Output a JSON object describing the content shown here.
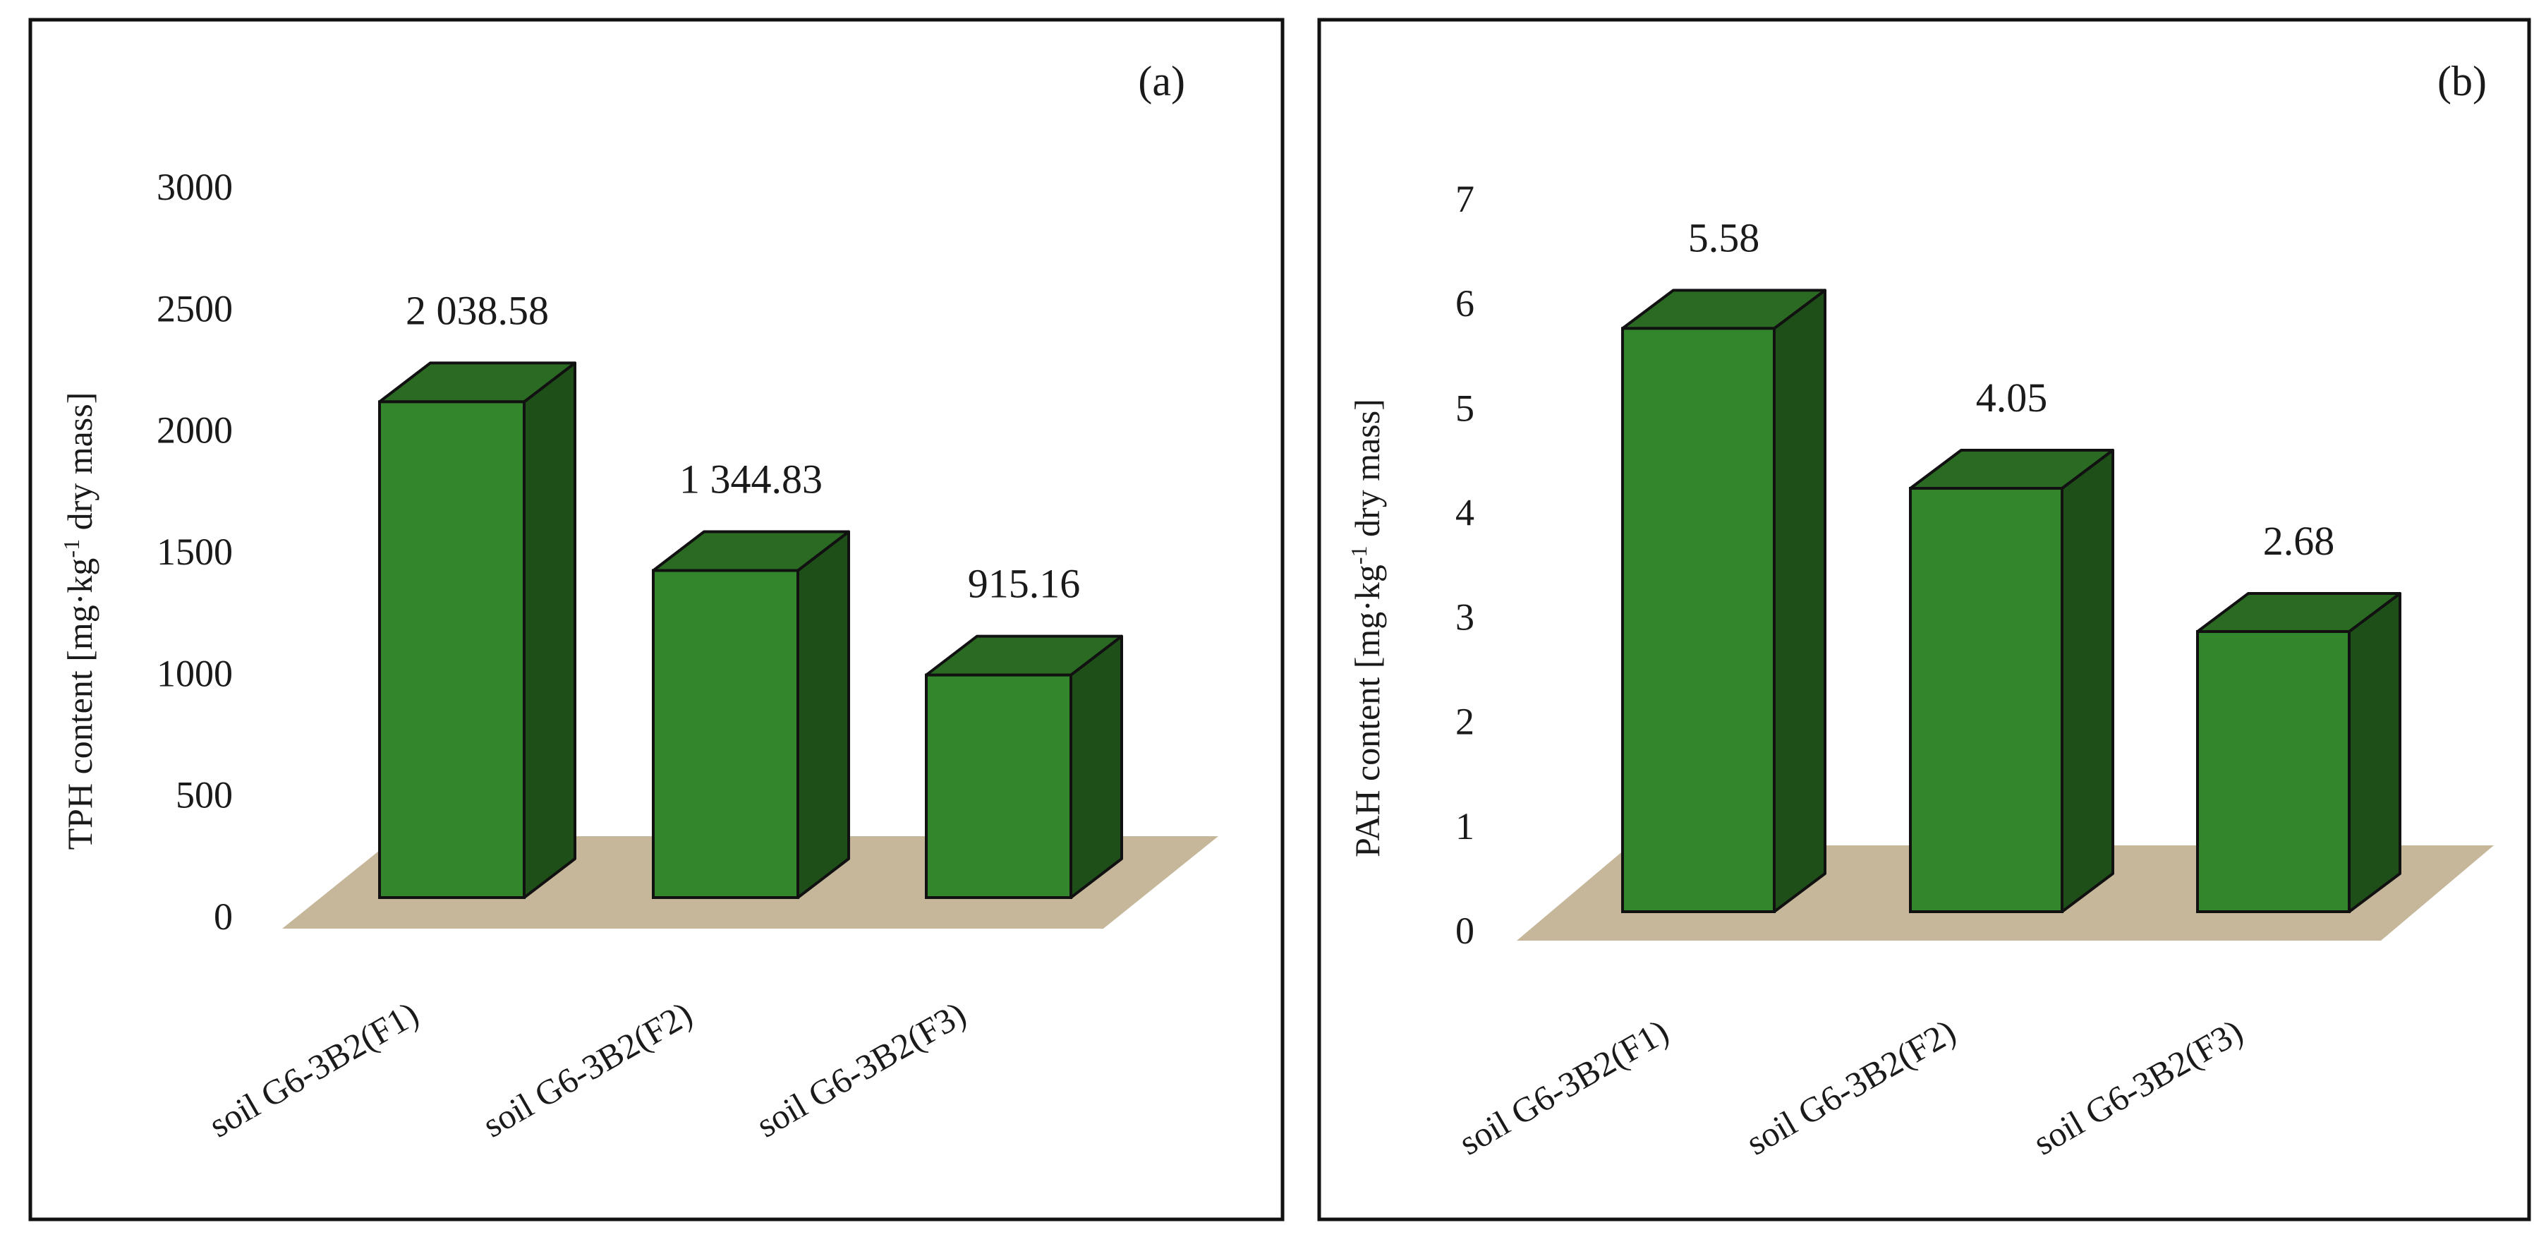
{
  "chart_data": [
    {
      "type": "bar",
      "panel_label": "(a)",
      "ylabel_main": "TPH content [mg·kg",
      "ylabel_sup": "-1",
      "ylabel_tail": " dry mass]",
      "categories": [
        "soil G6-3B2(F1)",
        "soil G6-3B2(F2)",
        "soil G6-3B2(F3)"
      ],
      "values": [
        2038.58,
        1344.83,
        915.16
      ],
      "data_labels": [
        "2 038.58",
        "1 344.83",
        "915.16"
      ],
      "ylim": [
        0,
        3000
      ],
      "yticks": [
        0,
        500,
        1000,
        1500,
        2000,
        2500,
        3000
      ],
      "ytick_labels": [
        "0",
        "500",
        "1000",
        "1500",
        "2000",
        "2500",
        "3000"
      ],
      "grid": false
    },
    {
      "type": "bar",
      "panel_label": "(b)",
      "ylabel_main": "PAH content [mg·kg",
      "ylabel_sup": "-1",
      "ylabel_tail": " dry mass]",
      "categories": [
        "soil G6-3B2(F1)",
        "soil G6-3B2(F2)",
        "soil G6-3B2(F3)"
      ],
      "values": [
        5.58,
        4.05,
        2.68
      ],
      "data_labels": [
        "5.58",
        "4.05",
        "2.68"
      ],
      "ylim": [
        0,
        7
      ],
      "yticks": [
        0,
        1,
        2,
        3,
        4,
        5,
        6,
        7
      ],
      "ytick_labels": [
        "0",
        "1",
        "2",
        "3",
        "4",
        "5",
        "6",
        "7"
      ],
      "grid": false
    }
  ],
  "colors": {
    "bar_front": "#33862b",
    "bar_side": "#1f4f19",
    "bar_top": "#2a6a22",
    "floor": "#c6b79b",
    "outline": "#111111"
  }
}
